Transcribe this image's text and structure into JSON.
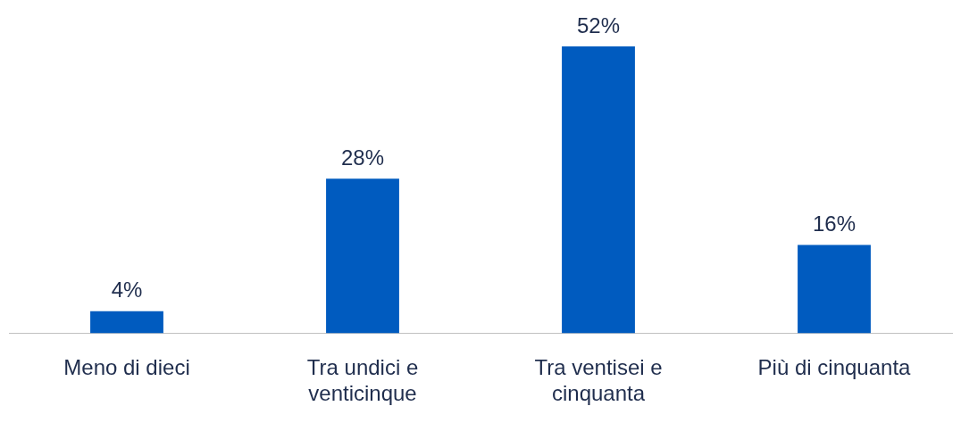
{
  "chart_data": {
    "type": "bar",
    "categories": [
      "Meno di dieci",
      "Tra undici e venticinque",
      "Tra ventisei e cinquanta",
      "Più di cinquanta"
    ],
    "values": [
      4,
      28,
      52,
      16
    ],
    "color": "#005bbf",
    "value_labels": [
      "4%",
      "28%",
      "52%",
      "16%"
    ],
    "grid": false,
    "legend": false
  }
}
